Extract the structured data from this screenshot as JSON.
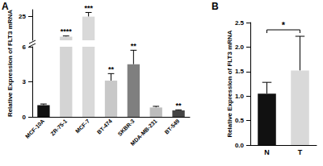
{
  "chart_data": [
    {
      "type": "bar",
      "title": "A",
      "y_label": "Relative Expression of FLT3 mRNA",
      "categories": [
        "MCF-10A",
        "ZR-75-1",
        "MCF-7",
        "BT-474",
        "SKBR-3",
        "MDA-MB-231",
        "BT-549"
      ],
      "values": [
        1.0,
        10.6,
        25.0,
        3.1,
        4.5,
        0.8,
        0.55
      ],
      "errors": [
        0.1,
        0.5,
        3.0,
        0.6,
        1.2,
        0.1,
        0.05
      ],
      "significance": [
        null,
        "****",
        "***",
        "**",
        "**",
        null,
        "**"
      ],
      "colors": [
        "#111111",
        "#d4d4d4",
        "#d9d9d9",
        "#c8c8c8",
        "#7f7f7f",
        "#bdbdbd",
        "#444444"
      ],
      "ylim": [
        0,
        30
      ],
      "y_break": [
        6,
        8
      ],
      "yticks": [
        0,
        3,
        6,
        25
      ],
      "grid": false
    },
    {
      "type": "bar",
      "title": "B",
      "y_label": "Relative Expression of FLT3 mRNA",
      "categories": [
        "N",
        "T"
      ],
      "values": [
        1.05,
        1.52
      ],
      "errors": [
        0.23,
        0.7
      ],
      "colors": [
        "#111111",
        "#d9d9d9"
      ],
      "comparisons": [
        {
          "from": "N",
          "to": "T",
          "label": "*"
        }
      ],
      "ylim": [
        0,
        2.5
      ],
      "yticks": [
        {
          "value": 0,
          "label": "0.0"
        },
        0.5,
        {
          "value": 1,
          "label": "1.0"
        },
        1.5,
        {
          "value": 2,
          "label": "2.0"
        },
        2.5
      ],
      "grid": false
    }
  ]
}
